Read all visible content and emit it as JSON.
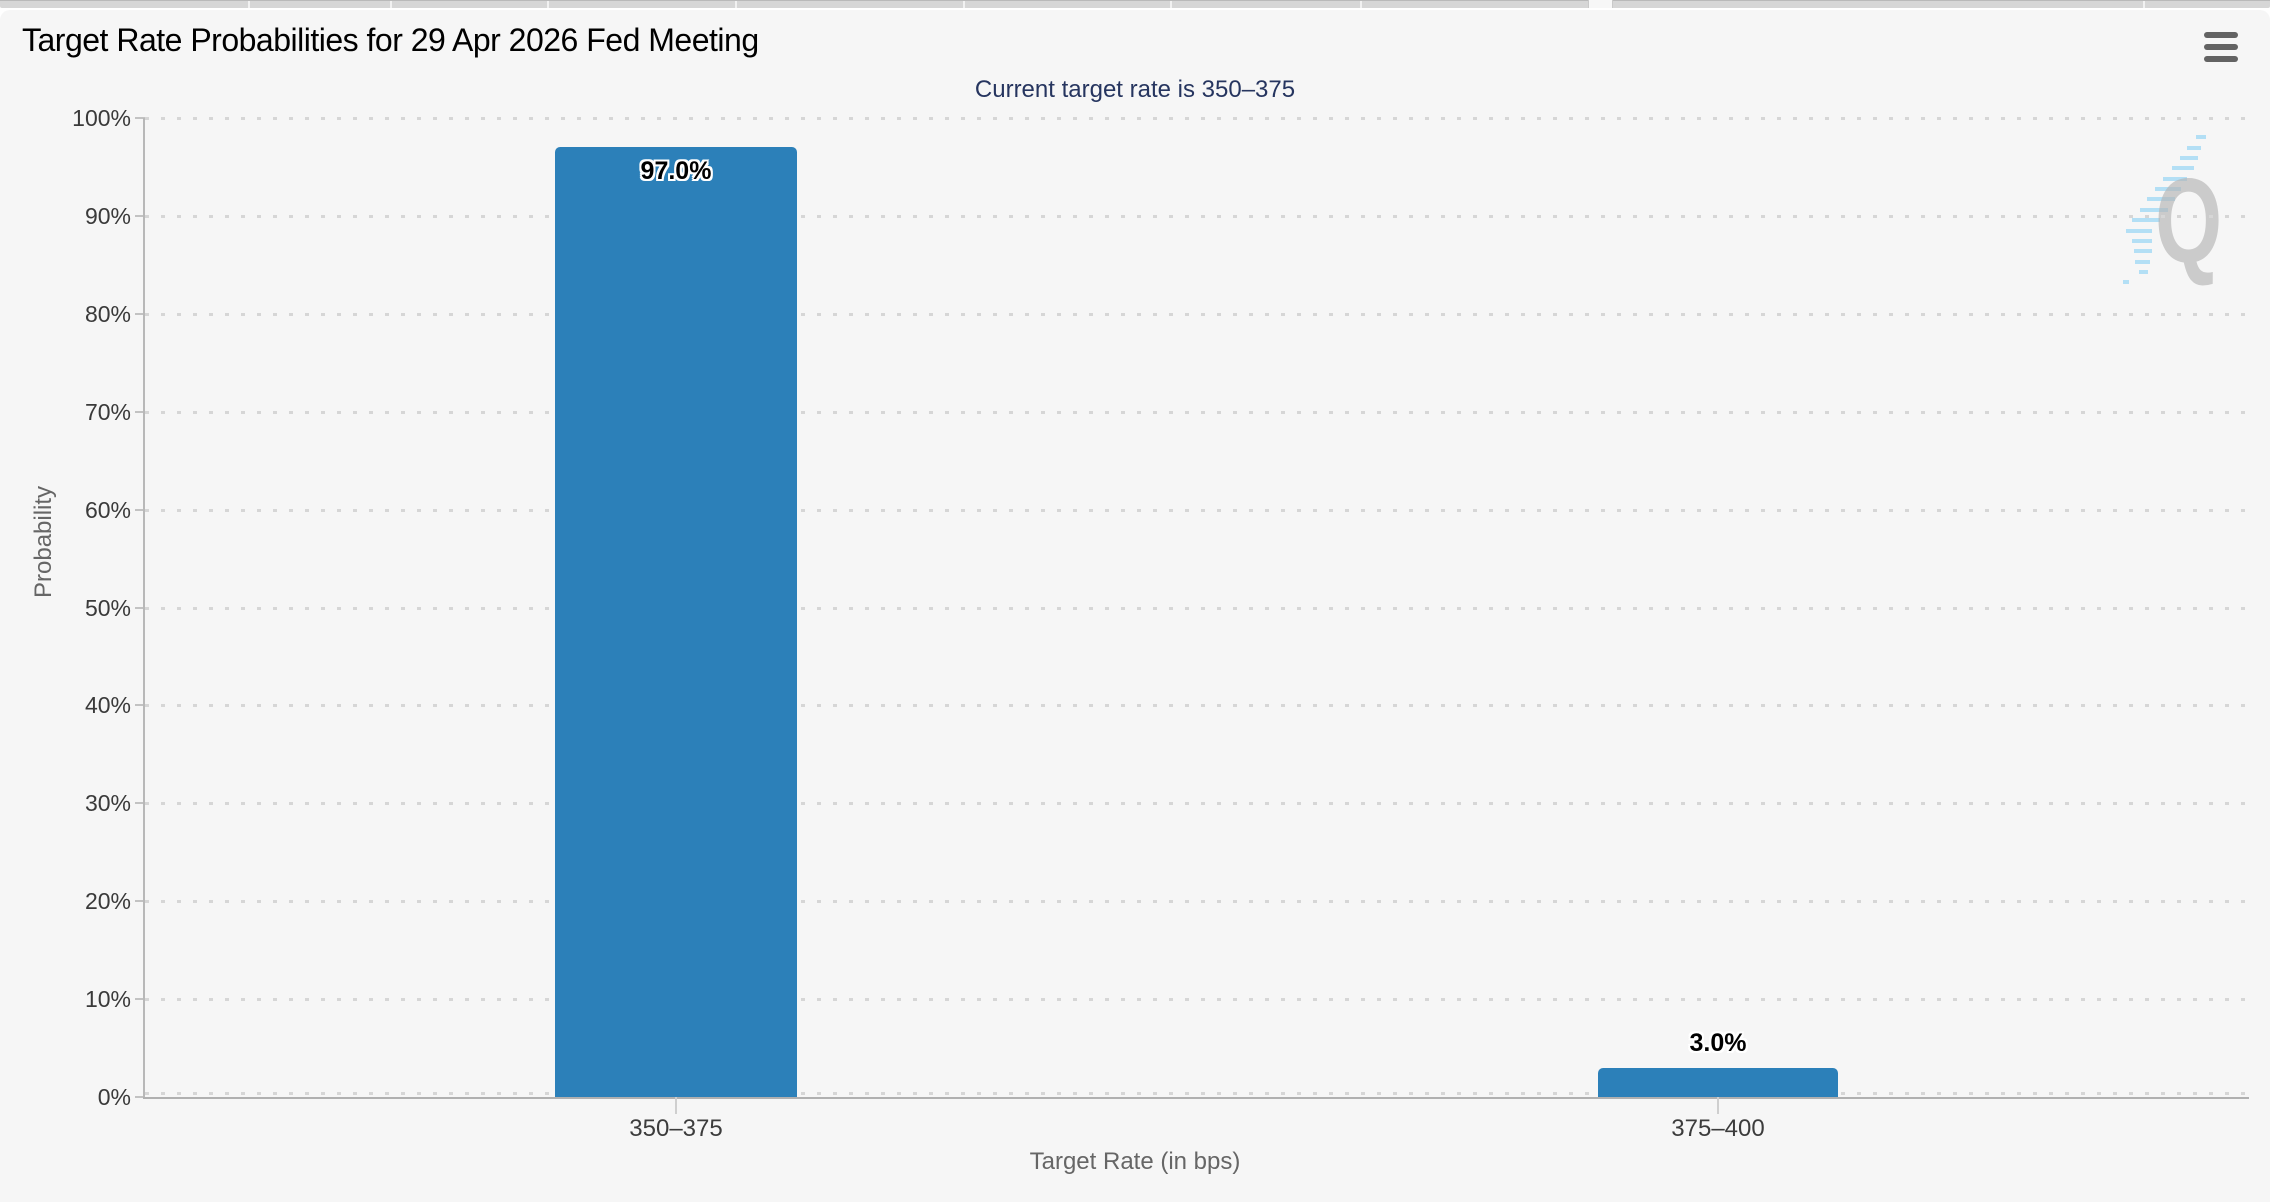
{
  "chart": {
    "title": "Target Rate Probabilities for 29 Apr 2026 Fed Meeting",
    "subtitle": "Current target rate is 350–375",
    "watermark_letter": "Q",
    "chart_data": {
      "type": "bar",
      "categories": [
        "350–375",
        "375–400"
      ],
      "values": [
        97.0,
        3.0
      ],
      "data_labels": [
        "97.0%",
        "3.0%"
      ],
      "title": "Target Rate Probabilities for 29 Apr 2026 Fed Meeting",
      "subtitle": "Current target rate is 350–375",
      "xlabel": "Target Rate (in bps)",
      "ylabel": "Probability",
      "ylim": [
        0,
        100
      ],
      "ytick_interval": 10,
      "ytick_labels": [
        "0%",
        "10%",
        "20%",
        "30%",
        "40%",
        "50%",
        "60%",
        "70%",
        "80%",
        "90%",
        "100%"
      ],
      "grid": "dotted-horizontal",
      "legend": "none",
      "bar_color": "#2c80b9"
    },
    "colors": {
      "chart_background": "#f6f6f6",
      "bar": "#2c80b9",
      "subtitle_text": "#26355f",
      "axis_title_text": "#666666",
      "tick_label_text": "#3a3a3a",
      "watermark_gray": "#b5b5b5",
      "watermark_blue": "#a8dbf5"
    }
  }
}
